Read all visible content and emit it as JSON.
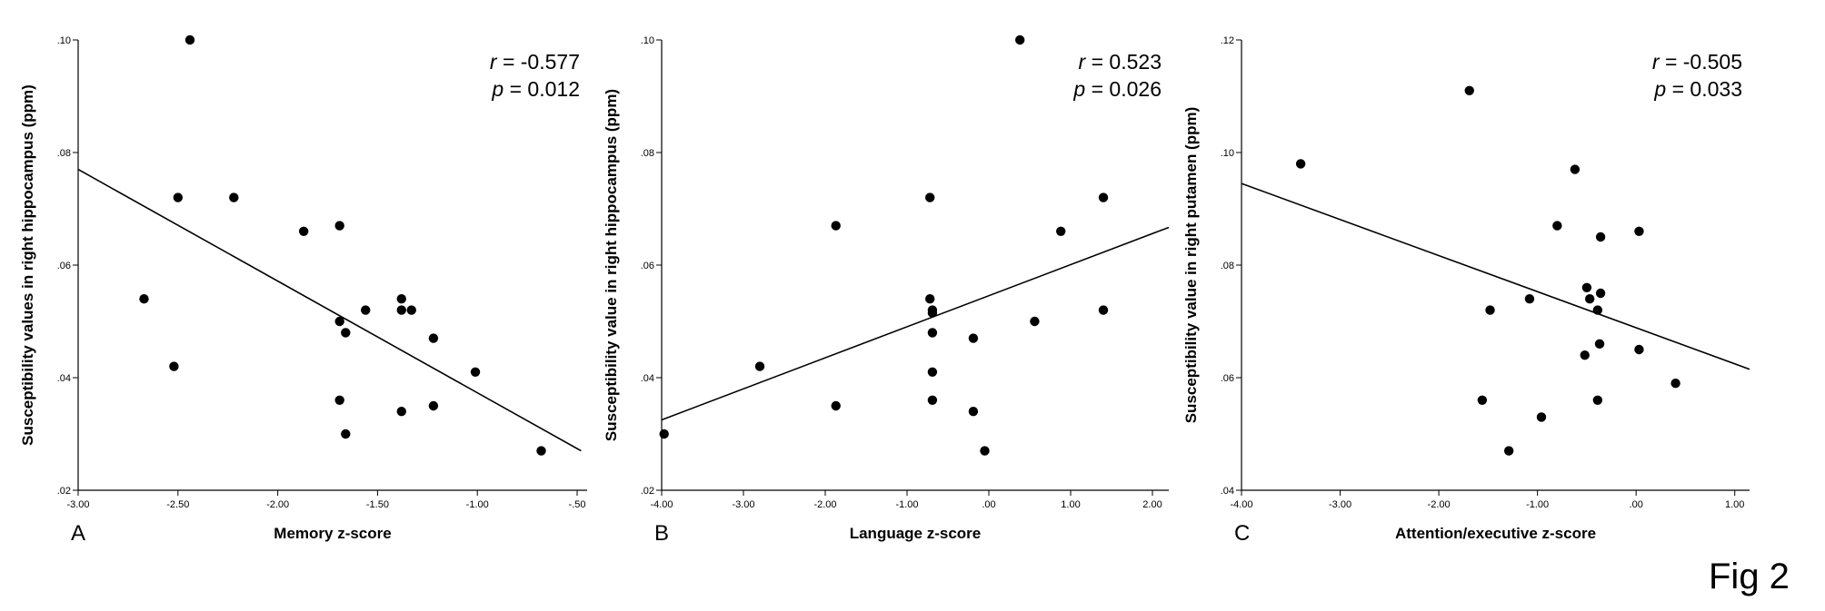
{
  "figure_label": "Fig 2",
  "chart_data": [
    {
      "type": "scatter",
      "panel": "A",
      "xlabel": "Memory z-score",
      "ylabel": "Susceptibility values in right hippocampus (ppm)",
      "xlim": [
        -3.0,
        -0.45
      ],
      "ylim": [
        0.02,
        0.1
      ],
      "xticks": [
        -3.0,
        -2.5,
        -2.0,
        -1.5,
        -1.0,
        -0.5
      ],
      "xtick_labels": [
        "-3.00",
        "-2.50",
        "-2.00",
        "-1.50",
        "-1.00",
        "-.50"
      ],
      "yticks": [
        0.02,
        0.04,
        0.06,
        0.08,
        0.1
      ],
      "ytick_labels": [
        ".02",
        ".04",
        ".06",
        ".08",
        ".10"
      ],
      "stat_r": "-0.577",
      "stat_p": "0.012",
      "fit_line": {
        "x": [
          -3.0,
          -0.48
        ],
        "y": [
          0.077,
          0.027
        ]
      },
      "points": [
        {
          "x": -2.44,
          "y": 0.1
        },
        {
          "x": -2.5,
          "y": 0.072
        },
        {
          "x": -2.22,
          "y": 0.072
        },
        {
          "x": -2.67,
          "y": 0.054
        },
        {
          "x": -2.52,
          "y": 0.042
        },
        {
          "x": -1.87,
          "y": 0.066
        },
        {
          "x": -1.69,
          "y": 0.067
        },
        {
          "x": -1.69,
          "y": 0.05
        },
        {
          "x": -1.66,
          "y": 0.048
        },
        {
          "x": -1.69,
          "y": 0.036
        },
        {
          "x": -1.66,
          "y": 0.03
        },
        {
          "x": -1.56,
          "y": 0.052
        },
        {
          "x": -1.38,
          "y": 0.054
        },
        {
          "x": -1.38,
          "y": 0.052
        },
        {
          "x": -1.33,
          "y": 0.052
        },
        {
          "x": -1.38,
          "y": 0.034
        },
        {
          "x": -1.22,
          "y": 0.047
        },
        {
          "x": -1.22,
          "y": 0.035
        },
        {
          "x": -1.01,
          "y": 0.041
        },
        {
          "x": -0.68,
          "y": 0.027
        }
      ]
    },
    {
      "type": "scatter",
      "panel": "B",
      "xlabel": "Language z-score",
      "ylabel": "Susceptibility value in right hippocampus (ppm)",
      "xlim": [
        -4.0,
        2.2
      ],
      "ylim": [
        0.02,
        0.1
      ],
      "xticks": [
        -4.0,
        -3.0,
        -2.0,
        -1.0,
        0.0,
        1.0,
        2.0
      ],
      "xtick_labels": [
        "-4.00",
        "-3.00",
        "-2.00",
        "-1.00",
        ".00",
        "1.00",
        "2.00"
      ],
      "yticks": [
        0.02,
        0.04,
        0.06,
        0.08,
        0.1
      ],
      "ytick_labels": [
        ".02",
        ".04",
        ".06",
        ".08",
        ".10"
      ],
      "stat_r": "0.523",
      "stat_p": "0.026",
      "fit_line": {
        "x": [
          -4.0,
          2.2
        ],
        "y": [
          0.0325,
          0.0667
        ]
      },
      "points": [
        {
          "x": 0.38,
          "y": 0.1
        },
        {
          "x": -1.87,
          "y": 0.067
        },
        {
          "x": -0.72,
          "y": 0.072
        },
        {
          "x": 1.4,
          "y": 0.072
        },
        {
          "x": 0.88,
          "y": 0.066
        },
        {
          "x": -0.72,
          "y": 0.054
        },
        {
          "x": -0.69,
          "y": 0.052
        },
        {
          "x": -0.69,
          "y": 0.0515
        },
        {
          "x": -0.69,
          "y": 0.048
        },
        {
          "x": -0.19,
          "y": 0.047
        },
        {
          "x": 0.56,
          "y": 0.05
        },
        {
          "x": 1.4,
          "y": 0.052
        },
        {
          "x": -2.8,
          "y": 0.042
        },
        {
          "x": -0.69,
          "y": 0.041
        },
        {
          "x": -1.87,
          "y": 0.035
        },
        {
          "x": -0.69,
          "y": 0.036
        },
        {
          "x": -0.19,
          "y": 0.034
        },
        {
          "x": -3.97,
          "y": 0.03
        },
        {
          "x": -0.05,
          "y": 0.027
        }
      ]
    },
    {
      "type": "scatter",
      "panel": "C",
      "xlabel": "Attention/executive z-score",
      "ylabel": "Susceptibility value in right putamen (ppm)",
      "xlim": [
        -4.0,
        1.15
      ],
      "ylim": [
        0.04,
        0.12
      ],
      "xticks": [
        -4.0,
        -3.0,
        -2.0,
        -1.0,
        0.0,
        1.0
      ],
      "xtick_labels": [
        "-4.00",
        "-3.00",
        "-2.00",
        "-1.00",
        ".00",
        "1.00"
      ],
      "yticks": [
        0.04,
        0.06,
        0.08,
        0.1,
        0.12
      ],
      "ytick_labels": [
        ".04",
        ".06",
        ".08",
        ".10",
        ".12"
      ],
      "stat_r": "-0.505",
      "stat_p": "0.033",
      "fit_line": {
        "x": [
          -4.0,
          1.15
        ],
        "y": [
          0.0945,
          0.0615
        ]
      },
      "points": [
        {
          "x": -1.69,
          "y": 0.111
        },
        {
          "x": -3.4,
          "y": 0.098
        },
        {
          "x": -0.62,
          "y": 0.097
        },
        {
          "x": -0.8,
          "y": 0.087
        },
        {
          "x": 0.03,
          "y": 0.086
        },
        {
          "x": -0.36,
          "y": 0.085
        },
        {
          "x": -0.5,
          "y": 0.076
        },
        {
          "x": -0.36,
          "y": 0.075
        },
        {
          "x": -0.47,
          "y": 0.074
        },
        {
          "x": -1.08,
          "y": 0.074
        },
        {
          "x": -0.39,
          "y": 0.072
        },
        {
          "x": -1.48,
          "y": 0.072
        },
        {
          "x": -0.37,
          "y": 0.066
        },
        {
          "x": 0.03,
          "y": 0.065
        },
        {
          "x": -0.52,
          "y": 0.064
        },
        {
          "x": 0.4,
          "y": 0.059
        },
        {
          "x": -1.56,
          "y": 0.056
        },
        {
          "x": -0.39,
          "y": 0.056
        },
        {
          "x": -0.96,
          "y": 0.053
        },
        {
          "x": -1.29,
          "y": 0.047
        }
      ]
    }
  ]
}
